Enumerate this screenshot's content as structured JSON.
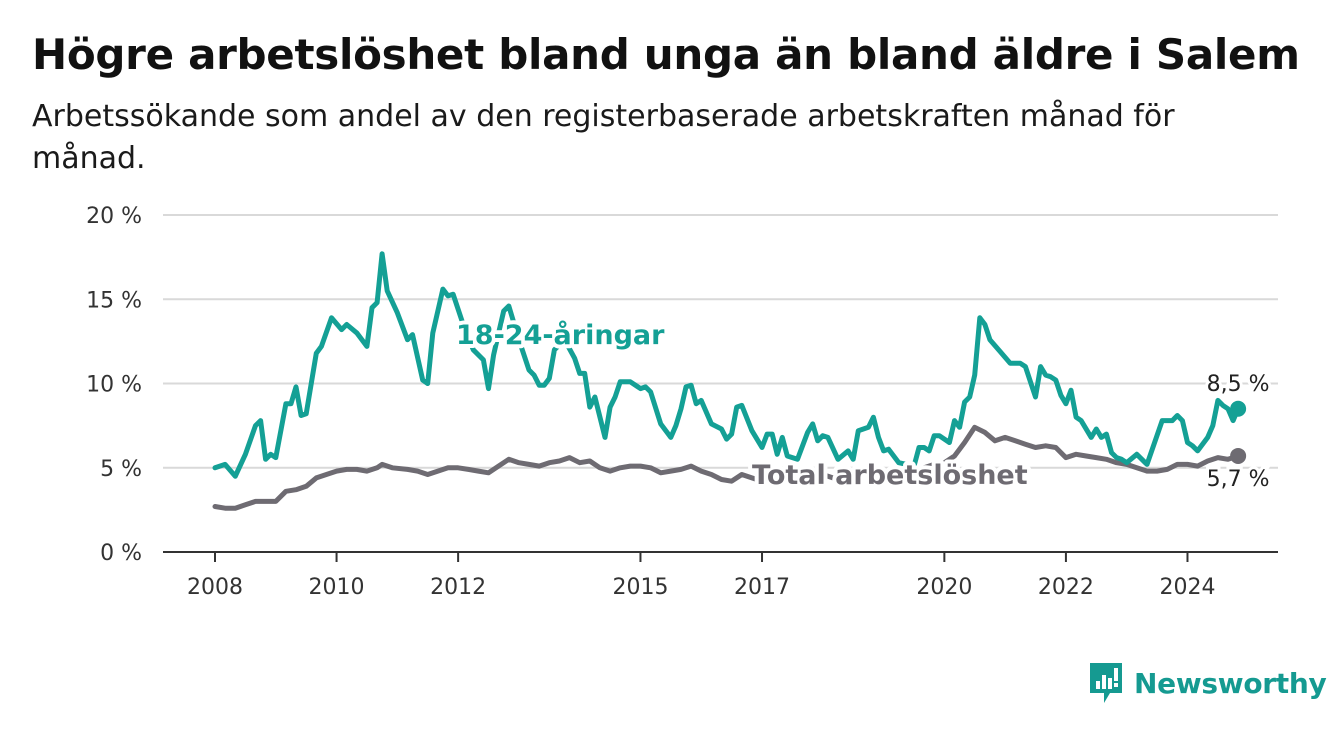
{
  "title": "Högre arbetslöshet bland unga än bland äldre i Salem",
  "subtitle": "Arbetssökande som andel av den registerbaserade arbetskraften månad för månad.",
  "brand": "Newsworthy",
  "colors": {
    "youth": "#14a095",
    "total": "#6e6b72",
    "grid": "#d9d9d9",
    "axis": "#333333"
  },
  "chart_data": {
    "type": "line",
    "y_ticks": [
      "0 %",
      "5 %",
      "10 %",
      "15 %",
      "20 %"
    ],
    "ylim": [
      0,
      20
    ],
    "x_ticks": [
      "2008",
      "2010",
      "2012",
      "2015",
      "2017",
      "2020",
      "2022",
      "2024"
    ],
    "xlim": [
      "2008-01",
      "2024-09"
    ],
    "grid": "horizontal",
    "series": [
      {
        "name": "18-24-åringar",
        "label_end": "8,5 %",
        "points": [
          [
            "2008-01",
            5.0
          ],
          [
            "2008-03",
            5.2
          ],
          [
            "2008-05",
            4.5
          ],
          [
            "2008-07",
            5.8
          ],
          [
            "2008-09",
            7.5
          ],
          [
            "2008-10",
            7.8
          ],
          [
            "2008-11",
            5.5
          ],
          [
            "2008-12",
            5.8
          ],
          [
            "2009-01",
            5.6
          ],
          [
            "2009-03",
            8.8
          ],
          [
            "2009-04",
            8.8
          ],
          [
            "2009-05",
            9.8
          ],
          [
            "2009-06",
            8.1
          ],
          [
            "2009-07",
            8.2
          ],
          [
            "2009-09",
            11.8
          ],
          [
            "2009-10",
            12.2
          ],
          [
            "2009-12",
            13.9
          ],
          [
            "2010-02",
            13.2
          ],
          [
            "2010-03",
            13.5
          ],
          [
            "2010-05",
            13.0
          ],
          [
            "2010-07",
            12.2
          ],
          [
            "2010-08",
            14.5
          ],
          [
            "2010-09",
            14.8
          ],
          [
            "2010-10",
            17.7
          ],
          [
            "2010-11",
            15.5
          ],
          [
            "2011-01",
            14.2
          ],
          [
            "2011-03",
            12.6
          ],
          [
            "2011-04",
            12.9
          ],
          [
            "2011-06",
            10.2
          ],
          [
            "2011-07",
            10.0
          ],
          [
            "2011-08",
            13.0
          ],
          [
            "2011-10",
            15.6
          ],
          [
            "2011-11",
            15.2
          ],
          [
            "2011-12",
            15.3
          ],
          [
            "2012-02",
            13.5
          ],
          [
            "2012-04",
            12.0
          ],
          [
            "2012-06",
            11.4
          ],
          [
            "2012-07",
            9.7
          ],
          [
            "2012-08",
            11.7
          ],
          [
            "2012-09",
            13.0
          ],
          [
            "2012-10",
            14.3
          ],
          [
            "2012-11",
            14.6
          ],
          [
            "2013-01",
            12.6
          ],
          [
            "2013-03",
            10.8
          ],
          [
            "2013-04",
            10.5
          ],
          [
            "2013-05",
            9.9
          ],
          [
            "2013-06",
            9.9
          ],
          [
            "2013-07",
            10.3
          ],
          [
            "2013-08",
            12.0
          ],
          [
            "2013-10",
            12.6
          ],
          [
            "2013-12",
            11.5
          ],
          [
            "2014-01",
            10.6
          ],
          [
            "2014-02",
            10.6
          ],
          [
            "2014-03",
            8.6
          ],
          [
            "2014-04",
            9.2
          ],
          [
            "2014-06",
            6.8
          ],
          [
            "2014-07",
            8.6
          ],
          [
            "2014-08",
            9.2
          ],
          [
            "2014-09",
            10.1
          ],
          [
            "2014-11",
            10.1
          ],
          [
            "2015-01",
            9.7
          ],
          [
            "2015-02",
            9.8
          ],
          [
            "2015-03",
            9.5
          ],
          [
            "2015-05",
            7.6
          ],
          [
            "2015-07",
            6.8
          ],
          [
            "2015-08",
            7.5
          ],
          [
            "2015-09",
            8.5
          ],
          [
            "2015-10",
            9.8
          ],
          [
            "2015-11",
            9.9
          ],
          [
            "2015-12",
            8.8
          ],
          [
            "2016-01",
            9.0
          ],
          [
            "2016-03",
            7.6
          ],
          [
            "2016-05",
            7.3
          ],
          [
            "2016-06",
            6.7
          ],
          [
            "2016-07",
            7.0
          ],
          [
            "2016-08",
            8.6
          ],
          [
            "2016-09",
            8.7
          ],
          [
            "2016-11",
            7.2
          ],
          [
            "2017-01",
            6.2
          ],
          [
            "2017-02",
            7.0
          ],
          [
            "2017-03",
            7.0
          ],
          [
            "2017-04",
            5.8
          ],
          [
            "2017-05",
            6.8
          ],
          [
            "2017-06",
            5.7
          ],
          [
            "2017-08",
            5.5
          ],
          [
            "2017-10",
            7.1
          ],
          [
            "2017-11",
            7.6
          ],
          [
            "2017-12",
            6.6
          ],
          [
            "2018-01",
            6.9
          ],
          [
            "2018-02",
            6.8
          ],
          [
            "2018-04",
            5.5
          ],
          [
            "2018-06",
            6.0
          ],
          [
            "2018-07",
            5.5
          ],
          [
            "2018-08",
            7.2
          ],
          [
            "2018-10",
            7.4
          ],
          [
            "2018-11",
            8.0
          ],
          [
            "2018-12",
            6.8
          ],
          [
            "2019-01",
            6.0
          ],
          [
            "2019-02",
            6.1
          ],
          [
            "2019-04",
            5.3
          ],
          [
            "2019-07",
            5.1
          ],
          [
            "2019-08",
            6.2
          ],
          [
            "2019-09",
            6.2
          ],
          [
            "2019-10",
            6.0
          ],
          [
            "2019-11",
            6.9
          ],
          [
            "2019-12",
            6.9
          ],
          [
            "2020-02",
            6.5
          ],
          [
            "2020-03",
            7.8
          ],
          [
            "2020-04",
            7.4
          ],
          [
            "2020-05",
            8.9
          ],
          [
            "2020-06",
            9.2
          ],
          [
            "2020-07",
            10.5
          ],
          [
            "2020-08",
            13.9
          ],
          [
            "2020-09",
            13.5
          ],
          [
            "2020-10",
            12.6
          ],
          [
            "2020-12",
            11.9
          ],
          [
            "2021-02",
            11.2
          ],
          [
            "2021-04",
            11.2
          ],
          [
            "2021-05",
            11.0
          ],
          [
            "2021-07",
            9.2
          ],
          [
            "2021-08",
            11.0
          ],
          [
            "2021-09",
            10.5
          ],
          [
            "2021-10",
            10.4
          ],
          [
            "2021-11",
            10.2
          ],
          [
            "2021-12",
            9.3
          ],
          [
            "2022-01",
            8.8
          ],
          [
            "2022-02",
            9.6
          ],
          [
            "2022-03",
            8.0
          ],
          [
            "2022-04",
            7.8
          ],
          [
            "2022-06",
            6.8
          ],
          [
            "2022-07",
            7.3
          ],
          [
            "2022-08",
            6.8
          ],
          [
            "2022-09",
            7.0
          ],
          [
            "2022-10",
            5.9
          ],
          [
            "2022-11",
            5.6
          ],
          [
            "2022-12",
            5.5
          ],
          [
            "2023-01",
            5.3
          ],
          [
            "2023-03",
            5.8
          ],
          [
            "2023-05",
            5.2
          ],
          [
            "2023-08",
            7.8
          ],
          [
            "2023-10",
            7.8
          ],
          [
            "2023-11",
            8.1
          ],
          [
            "2023-12",
            7.8
          ],
          [
            "2024-01",
            6.5
          ],
          [
            "2024-02",
            6.3
          ],
          [
            "2024-03",
            6.0
          ],
          [
            "2024-05",
            6.8
          ],
          [
            "2024-06",
            7.5
          ],
          [
            "2024-07",
            9.0
          ],
          [
            "2024-08",
            8.7
          ],
          [
            "2024-09",
            8.5
          ],
          [
            "2024-10",
            7.8
          ],
          [
            "2024-11",
            8.5
          ]
        ]
      },
      {
        "name": "Total arbetslöshet",
        "label_end": "5,7 %",
        "points": [
          [
            "2008-01",
            2.7
          ],
          [
            "2008-03",
            2.6
          ],
          [
            "2008-05",
            2.6
          ],
          [
            "2008-07",
            2.8
          ],
          [
            "2008-09",
            3.0
          ],
          [
            "2008-11",
            3.0
          ],
          [
            "2009-01",
            3.0
          ],
          [
            "2009-03",
            3.6
          ],
          [
            "2009-05",
            3.7
          ],
          [
            "2009-07",
            3.9
          ],
          [
            "2009-09",
            4.4
          ],
          [
            "2009-11",
            4.6
          ],
          [
            "2010-01",
            4.8
          ],
          [
            "2010-03",
            4.9
          ],
          [
            "2010-05",
            4.9
          ],
          [
            "2010-07",
            4.8
          ],
          [
            "2010-09",
            5.0
          ],
          [
            "2010-10",
            5.2
          ],
          [
            "2010-12",
            5.0
          ],
          [
            "2011-03",
            4.9
          ],
          [
            "2011-05",
            4.8
          ],
          [
            "2011-07",
            4.6
          ],
          [
            "2011-09",
            4.8
          ],
          [
            "2011-11",
            5.0
          ],
          [
            "2012-01",
            5.0
          ],
          [
            "2012-03",
            4.9
          ],
          [
            "2012-05",
            4.8
          ],
          [
            "2012-07",
            4.7
          ],
          [
            "2012-09",
            5.1
          ],
          [
            "2012-11",
            5.5
          ],
          [
            "2013-01",
            5.3
          ],
          [
            "2013-03",
            5.2
          ],
          [
            "2013-05",
            5.1
          ],
          [
            "2013-07",
            5.3
          ],
          [
            "2013-09",
            5.4
          ],
          [
            "2013-11",
            5.6
          ],
          [
            "2014-01",
            5.3
          ],
          [
            "2014-03",
            5.4
          ],
          [
            "2014-05",
            5.0
          ],
          [
            "2014-07",
            4.8
          ],
          [
            "2014-09",
            5.0
          ],
          [
            "2014-11",
            5.1
          ],
          [
            "2015-01",
            5.1
          ],
          [
            "2015-03",
            5.0
          ],
          [
            "2015-05",
            4.7
          ],
          [
            "2015-07",
            4.8
          ],
          [
            "2015-09",
            4.9
          ],
          [
            "2015-11",
            5.1
          ],
          [
            "2016-01",
            4.8
          ],
          [
            "2016-03",
            4.6
          ],
          [
            "2016-05",
            4.3
          ],
          [
            "2016-07",
            4.2
          ],
          [
            "2016-09",
            4.6
          ],
          [
            "2016-11",
            4.4
          ],
          [
            "2017-01",
            4.2
          ],
          [
            "2017-03",
            4.1
          ],
          [
            "2017-05",
            4.3
          ],
          [
            "2017-07",
            4.4
          ],
          [
            "2017-09",
            4.5
          ],
          [
            "2017-11",
            4.6
          ],
          [
            "2018-01",
            4.6
          ],
          [
            "2018-03",
            4.4
          ],
          [
            "2018-05",
            4.3
          ],
          [
            "2018-07",
            4.5
          ],
          [
            "2018-09",
            4.6
          ],
          [
            "2018-11",
            4.7
          ],
          [
            "2019-01",
            4.6
          ],
          [
            "2019-03",
            4.6
          ],
          [
            "2019-05",
            4.6
          ],
          [
            "2019-07",
            4.7
          ],
          [
            "2019-09",
            5.0
          ],
          [
            "2019-11",
            5.2
          ],
          [
            "2020-01",
            5.3
          ],
          [
            "2020-03",
            5.7
          ],
          [
            "2020-05",
            6.5
          ],
          [
            "2020-07",
            7.4
          ],
          [
            "2020-09",
            7.1
          ],
          [
            "2020-11",
            6.6
          ],
          [
            "2021-01",
            6.8
          ],
          [
            "2021-03",
            6.6
          ],
          [
            "2021-05",
            6.4
          ],
          [
            "2021-07",
            6.2
          ],
          [
            "2021-09",
            6.3
          ],
          [
            "2021-11",
            6.2
          ],
          [
            "2022-01",
            5.6
          ],
          [
            "2022-03",
            5.8
          ],
          [
            "2022-05",
            5.7
          ],
          [
            "2022-07",
            5.6
          ],
          [
            "2022-09",
            5.5
          ],
          [
            "2022-11",
            5.3
          ],
          [
            "2023-01",
            5.2
          ],
          [
            "2023-03",
            5.0
          ],
          [
            "2023-05",
            4.8
          ],
          [
            "2023-07",
            4.8
          ],
          [
            "2023-09",
            4.9
          ],
          [
            "2023-11",
            5.2
          ],
          [
            "2024-01",
            5.2
          ],
          [
            "2024-03",
            5.1
          ],
          [
            "2024-05",
            5.4
          ],
          [
            "2024-07",
            5.6
          ],
          [
            "2024-09",
            5.5
          ],
          [
            "2024-11",
            5.7
          ]
        ]
      }
    ]
  }
}
